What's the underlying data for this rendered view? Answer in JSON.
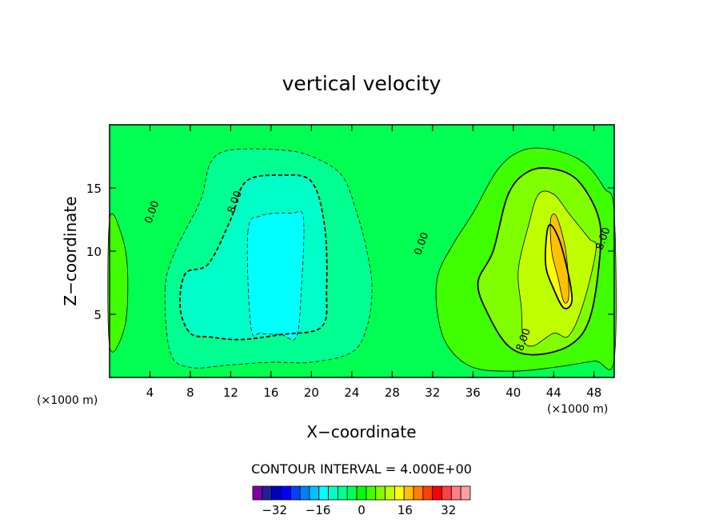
{
  "chart_data": {
    "type": "heatmap",
    "title": "vertical velocity",
    "xlabel": "X−coordinate",
    "ylabel": "Z−coordinate",
    "x_unit_label": "(×1000 m)",
    "y_unit_label": "(×1000 m)",
    "xlim": [
      0,
      50
    ],
    "ylim": [
      0,
      20
    ],
    "x_ticks": [
      4,
      8,
      12,
      16,
      20,
      24,
      28,
      32,
      36,
      40,
      44,
      48
    ],
    "y_ticks": [
      5,
      10,
      15
    ],
    "contour_interval_text": "CONTOUR INTERVAL = 4.000E+00",
    "contour_labels": [
      {
        "text": "0.00",
        "x": 4.5,
        "y": 13
      },
      {
        "text": "8.00",
        "x": 12.7,
        "y": 13.8
      },
      {
        "text": "0.00",
        "x": 31.2,
        "y": 10.5
      },
      {
        "text": "8.00",
        "x": 49.2,
        "y": 10.9
      },
      {
        "text": "8.00",
        "x": 41.3,
        "y": 2.9
      }
    ],
    "colorbar": {
      "tick_labels": [
        "−32",
        "−16",
        "0",
        "16",
        "32"
      ],
      "tick_values": [
        -32,
        -16,
        0,
        16,
        32
      ],
      "min": -40,
      "max": 40,
      "colors": [
        "#8000a0",
        "#2020a0",
        "#0000c0",
        "#0000ff",
        "#0040ff",
        "#0080ff",
        "#00c0ff",
        "#00ffff",
        "#00ffc8",
        "#00ff90",
        "#00ff50",
        "#00ff00",
        "#40ff00",
        "#80ff00",
        "#c0ff00",
        "#ffff00",
        "#ffc000",
        "#ff8000",
        "#ff4000",
        "#ff0000",
        "#ff4040",
        "#ff8080",
        "#ffa0a0"
      ]
    },
    "regions": [
      {
        "level": 0,
        "color": "#00ff50",
        "points": [
          [
            0,
            0
          ],
          [
            50,
            0
          ],
          [
            50,
            20
          ],
          [
            0,
            20
          ]
        ]
      },
      {
        "level": 4,
        "color": "#40ff00",
        "points": [
          [
            0,
            12.5
          ],
          [
            1.3,
            11
          ],
          [
            1.8,
            8
          ],
          [
            1.5,
            4
          ],
          [
            0,
            2.5
          ]
        ]
      },
      {
        "level": 4,
        "color": "#40ff00",
        "points": [
          [
            32.5,
            8
          ],
          [
            34,
            10.5
          ],
          [
            36,
            13
          ],
          [
            38.5,
            16.5
          ],
          [
            41,
            18
          ],
          [
            44,
            18
          ],
          [
            47,
            17
          ],
          [
            49,
            15
          ],
          [
            50,
            13
          ],
          [
            50,
            1.5
          ],
          [
            48,
            1.3
          ],
          [
            44,
            0.8
          ],
          [
            40,
            0.5
          ],
          [
            36,
            0.8
          ],
          [
            33.5,
            2.5
          ],
          [
            32.5,
            5
          ]
        ]
      },
      {
        "level": 8,
        "color": "#80ff00",
        "points": [
          [
            36.5,
            7.5
          ],
          [
            38,
            10
          ],
          [
            39.5,
            14.5
          ],
          [
            41.5,
            16.3
          ],
          [
            44,
            16.5
          ],
          [
            46.5,
            15.5
          ],
          [
            48.5,
            12.5
          ],
          [
            48.5,
            9
          ],
          [
            47.5,
            4.5
          ],
          [
            45.5,
            2.5
          ],
          [
            42,
            1.8
          ],
          [
            39.5,
            2.5
          ],
          [
            37.5,
            5
          ]
        ]
      },
      {
        "level": 12,
        "color": "#c0ff00",
        "points": [
          [
            40.5,
            8.5
          ],
          [
            41.5,
            12
          ],
          [
            42.5,
            14.5
          ],
          [
            44,
            14.5
          ],
          [
            45.5,
            13
          ],
          [
            47.5,
            11
          ],
          [
            48.2,
            10.2
          ],
          [
            47,
            6
          ],
          [
            45.5,
            3.3
          ],
          [
            44,
            3.5
          ],
          [
            42,
            2.5
          ],
          [
            41,
            3
          ],
          [
            40.8,
            5.5
          ]
        ]
      },
      {
        "level": 16,
        "color": "#ffff00",
        "points": [
          [
            43.5,
            12
          ],
          [
            44.5,
            11
          ],
          [
            45.5,
            8
          ],
          [
            45.8,
            6
          ],
          [
            45,
            5.5
          ],
          [
            44,
            7
          ],
          [
            43.2,
            9
          ]
        ]
      },
      {
        "level": 20,
        "color": "#ffc000",
        "points": [
          [
            43.7,
            12.5
          ],
          [
            44.3,
            12.7
          ],
          [
            45.2,
            10
          ],
          [
            45.5,
            6.5
          ],
          [
            45,
            6
          ],
          [
            44.4,
            8
          ],
          [
            43.8,
            10
          ]
        ]
      },
      {
        "level": -4,
        "color": "#00ff90",
        "points": [
          [
            5.5,
            7
          ],
          [
            6.5,
            10
          ],
          [
            9,
            14
          ],
          [
            10,
            17
          ],
          [
            12,
            18
          ],
          [
            17,
            18
          ],
          [
            20,
            17.5
          ],
          [
            23,
            16
          ],
          [
            24.5,
            13
          ],
          [
            25.5,
            10
          ],
          [
            26,
            7
          ],
          [
            25.5,
            4
          ],
          [
            24,
            2
          ],
          [
            20,
            1.2
          ],
          [
            16,
            1.2
          ],
          [
            12,
            1
          ],
          [
            8,
            0.8
          ],
          [
            6,
            2
          ]
        ]
      },
      {
        "level": -8,
        "color": "#00ffc8",
        "points": [
          [
            7,
            5.5
          ],
          [
            7.5,
            8.2
          ],
          [
            9.8,
            9
          ],
          [
            12,
            12.5
          ],
          [
            13.5,
            15.5
          ],
          [
            17,
            16
          ],
          [
            20,
            15.5
          ],
          [
            21.3,
            12
          ],
          [
            21.5,
            7
          ],
          [
            21,
            4
          ],
          [
            17,
            3.4
          ],
          [
            13,
            3
          ],
          [
            10,
            3.2
          ],
          [
            8,
            3.5
          ]
        ]
      },
      {
        "level": -12,
        "color": "#00ffff",
        "points": [
          [
            13.7,
            11.5
          ],
          [
            15,
            12.8
          ],
          [
            18,
            13
          ],
          [
            19.2,
            12.6
          ],
          [
            19,
            7
          ],
          [
            18.5,
            3.2
          ],
          [
            17,
            3.4
          ],
          [
            15,
            3.5
          ],
          [
            14,
            4
          ]
        ]
      }
    ]
  }
}
